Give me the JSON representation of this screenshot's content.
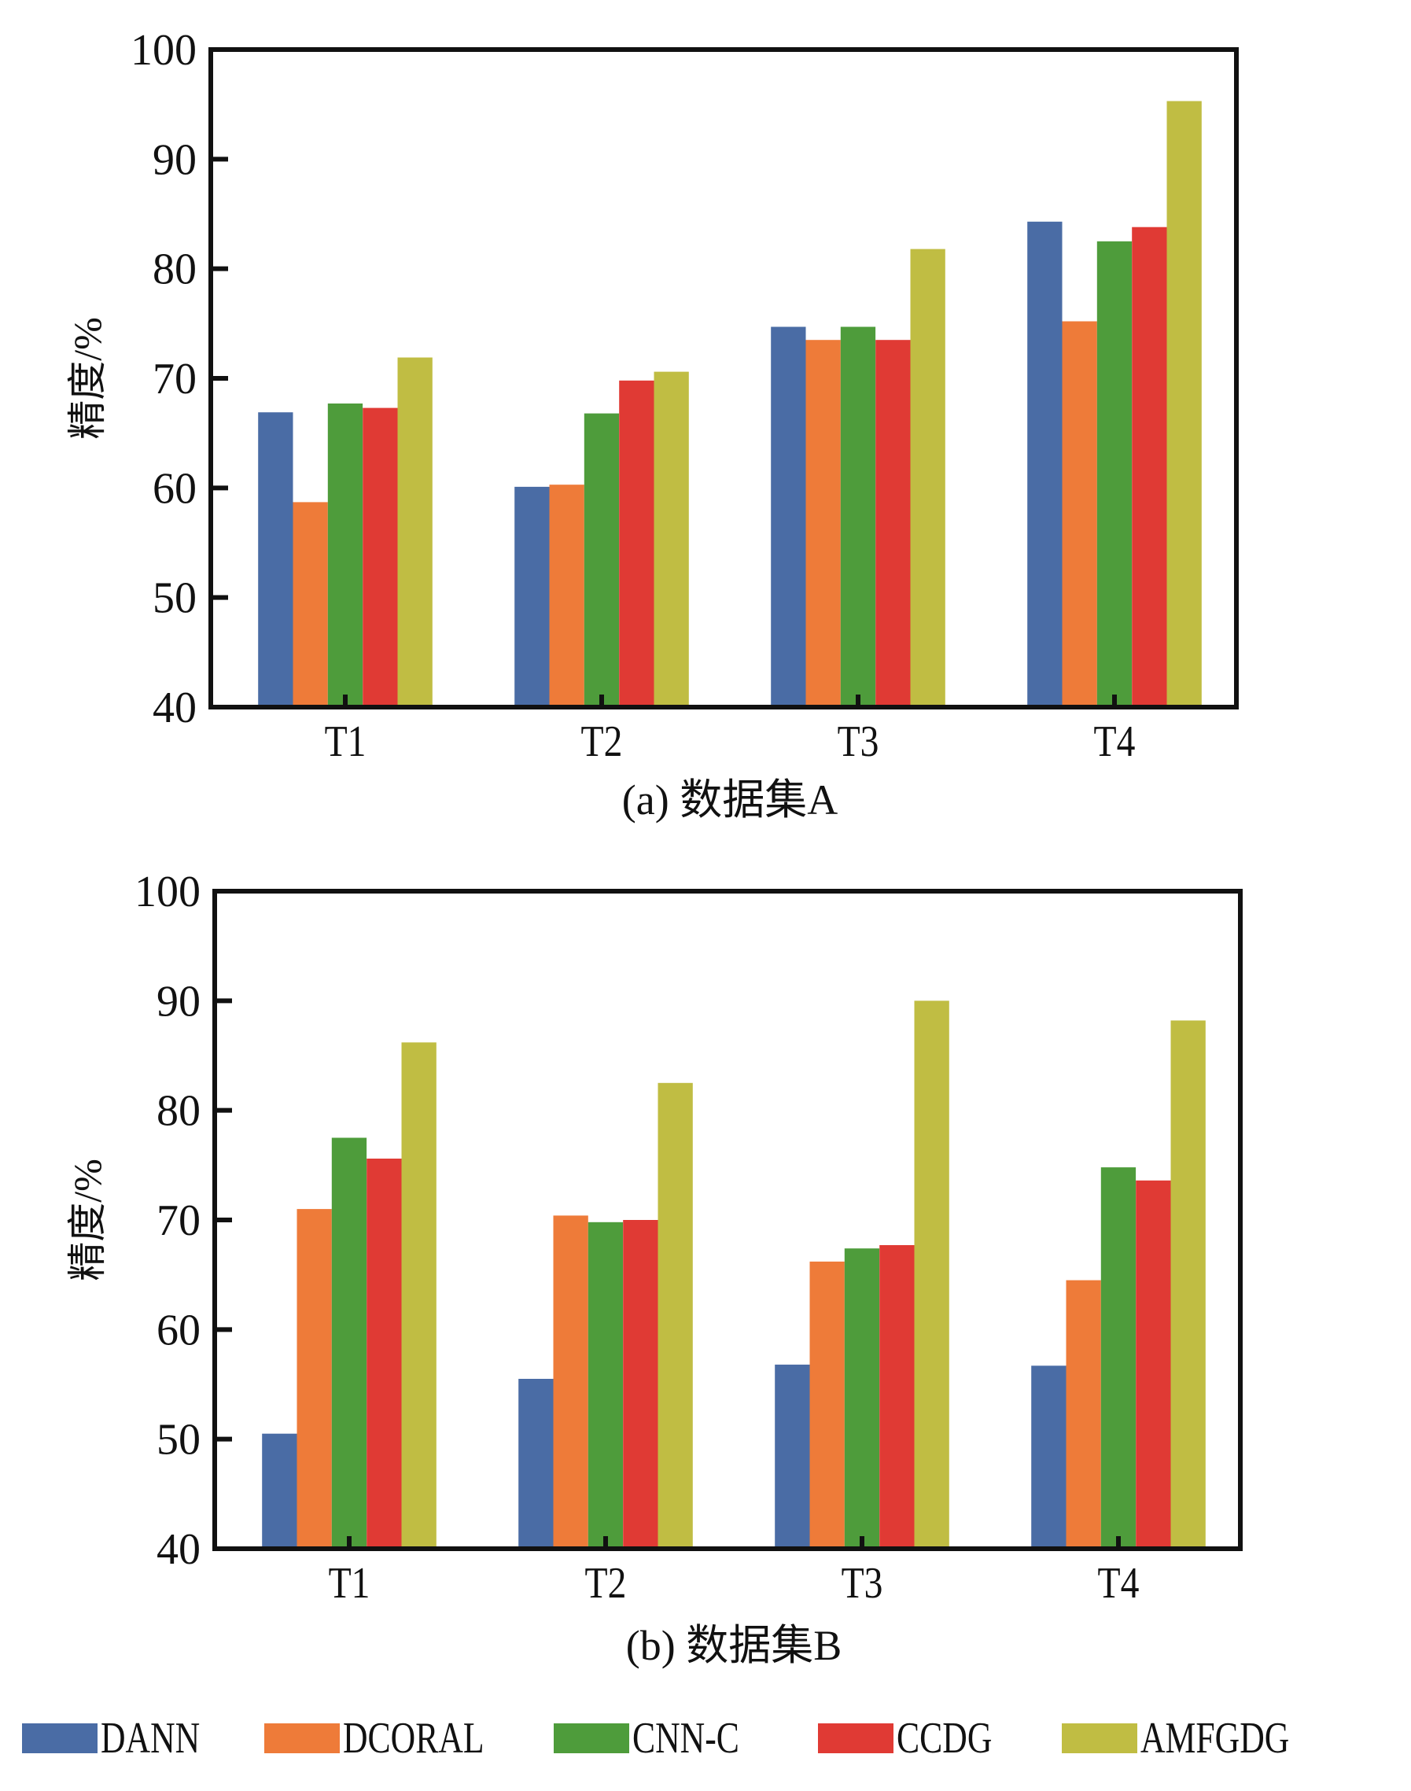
{
  "chart_data": [
    {
      "type": "bar",
      "title": "(a) 数据集A",
      "xlabel": "",
      "ylabel": "精度/%",
      "ylim": [
        40,
        100
      ],
      "yticks": [
        40,
        50,
        60,
        70,
        80,
        90,
        100
      ],
      "categories": [
        "T1",
        "T2",
        "T3",
        "T4"
      ],
      "grid": false,
      "series": [
        {
          "name": "DANN",
          "values": [
            66.9,
            60.1,
            74.7,
            84.3
          ]
        },
        {
          "name": "DCORAL",
          "values": [
            58.7,
            60.3,
            73.5,
            75.2
          ]
        },
        {
          "name": "CNN-C",
          "values": [
            67.7,
            66.8,
            74.7,
            82.5
          ]
        },
        {
          "name": "CCDG",
          "values": [
            67.3,
            69.8,
            73.5,
            83.8
          ]
        },
        {
          "name": "AMFGDG",
          "values": [
            71.9,
            70.6,
            81.8,
            95.3
          ]
        }
      ]
    },
    {
      "type": "bar",
      "title": "(b) 数据集B",
      "xlabel": "",
      "ylabel": "精度/%",
      "ylim": [
        40,
        100
      ],
      "yticks": [
        40,
        50,
        60,
        70,
        80,
        90,
        100
      ],
      "categories": [
        "T1",
        "T2",
        "T3",
        "T4"
      ],
      "grid": false,
      "series": [
        {
          "name": "DANN",
          "values": [
            50.5,
            55.5,
            56.8,
            56.7
          ]
        },
        {
          "name": "DCORAL",
          "values": [
            71.0,
            70.4,
            66.2,
            64.5
          ]
        },
        {
          "name": "CNN-C",
          "values": [
            77.5,
            69.8,
            67.4,
            74.8
          ]
        },
        {
          "name": "CCDG",
          "values": [
            75.6,
            70.0,
            67.7,
            73.6
          ]
        },
        {
          "name": "AMFGDG",
          "values": [
            86.2,
            82.5,
            90.0,
            88.2
          ]
        }
      ]
    }
  ],
  "legend": {
    "position": "bottom",
    "items": [
      {
        "label": "DANN",
        "color": "#4a6ca5"
      },
      {
        "label": "DCORAL",
        "color": "#ee7b39"
      },
      {
        "label": "CNN-C",
        "color": "#4e9c3b"
      },
      {
        "label": "CCDG",
        "color": "#e03a34"
      },
      {
        "label": "AMFGDG",
        "color": "#c0bd43"
      }
    ]
  }
}
